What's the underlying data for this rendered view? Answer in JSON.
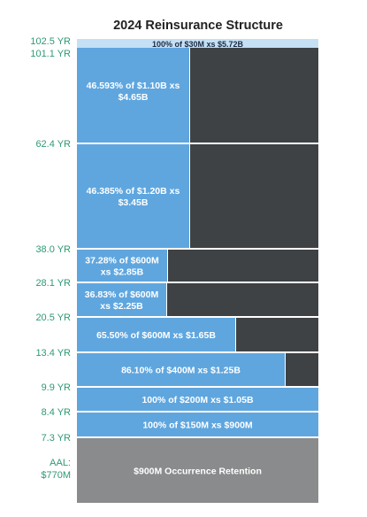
{
  "chart_data": {
    "type": "bar",
    "title": "2024 Reinsurance Structure",
    "y_labels": [
      {
        "text": "102.5 YR",
        "loss": 5.75
      },
      {
        "text": "101.1 YR",
        "loss": 5.72
      },
      {
        "text": "62.4 YR",
        "loss": 4.65
      },
      {
        "text": "38.0 YR",
        "loss": 3.45
      },
      {
        "text": "28.1 YR",
        "loss": 2.85
      },
      {
        "text": "20.5 YR",
        "loss": 2.25
      },
      {
        "text": "13.4 YR",
        "loss": 1.65
      },
      {
        "text": "9.9 YR",
        "loss": 1.25
      },
      {
        "text": "8.4 YR",
        "loss": 1.05
      },
      {
        "text": "7.3 YR",
        "loss": 0.9
      }
    ],
    "aal_label": {
      "lines": [
        "AAL:",
        "$770M"
      ]
    },
    "layers": [
      {
        "name": "retention",
        "label": [
          "$900M Occurrence Retention"
        ],
        "attach": 0.0,
        "limit": 0.9,
        "placed": 1.0
      },
      {
        "label": [
          "100% of $150M xs $900M"
        ],
        "attach": 0.9,
        "limit": 0.15,
        "placed": 1.0
      },
      {
        "label": [
          "100% of $200M xs $1.05B"
        ],
        "attach": 1.05,
        "limit": 0.2,
        "placed": 1.0
      },
      {
        "label": [
          "86.10% of $400M xs $1.25B"
        ],
        "attach": 1.25,
        "limit": 0.4,
        "placed": 0.861
      },
      {
        "label": [
          "65.50% of $600M xs $1.65B"
        ],
        "attach": 1.65,
        "limit": 0.6,
        "placed": 0.655
      },
      {
        "label": [
          "36.83% of $600M",
          "xs $2.25B"
        ],
        "attach": 2.25,
        "limit": 0.6,
        "placed": 0.3683
      },
      {
        "label": [
          "37.28% of $600M",
          "xs $2.85B"
        ],
        "attach": 2.85,
        "limit": 0.6,
        "placed": 0.3728
      },
      {
        "label": [
          "46.385% of $1.20B xs",
          "$3.45B"
        ],
        "attach": 3.45,
        "limit": 1.2,
        "placed": 0.46385
      },
      {
        "label": [
          "46.593% of $1.10B xs",
          "$4.65B"
        ],
        "attach": 4.65,
        "limit": 1.1,
        "placed": 0.46593
      },
      {
        "name": "top-layer",
        "label": [
          "100% of $30M xs $5.72B"
        ],
        "attach": 5.72,
        "limit": 0.03,
        "placed": 1.0
      }
    ]
  },
  "colors": {
    "placed": "#5fa6df",
    "unplaced": "#3f4244",
    "retention": "#898b8c",
    "top_layer": "#c5e0f4",
    "label": "#ffffff",
    "ylabel": "#2e9a72",
    "title": "#222222"
  }
}
